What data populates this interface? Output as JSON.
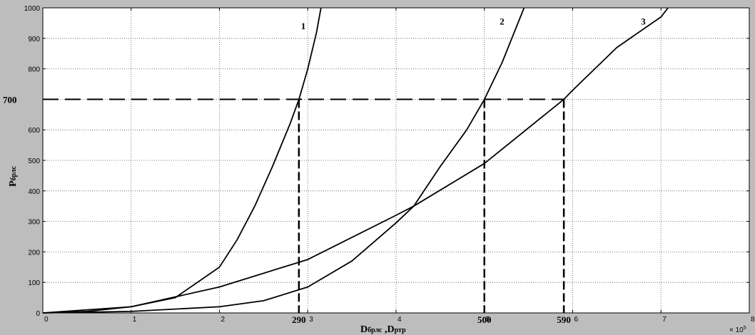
{
  "chart_data": {
    "type": "line",
    "xlabel_main": "D",
    "xlabel_sub1": "брлс",
    "xlabel_sep": " ,D",
    "xlabel_sub2": "ртр",
    "ylabel_main": "P",
    "ylabel_sub": "брлс",
    "x_multiplier": "× 10",
    "x_multiplier_exp": "5",
    "xlim": [
      0,
      8
    ],
    "ylim": [
      0,
      1000
    ],
    "grid": true,
    "x_ticks": [
      "0",
      "1",
      "2",
      "3",
      "4",
      "5",
      "6",
      "7",
      "8"
    ],
    "y_ticks": [
      "0",
      "100",
      "200",
      "300",
      "400",
      "500",
      "600",
      "700",
      "800",
      "900",
      "1000"
    ],
    "series": [
      {
        "name": "1",
        "x": [
          0,
          0.5,
          1.0,
          1.5,
          2.0,
          2.2,
          2.4,
          2.6,
          2.8,
          2.9,
          3.0,
          3.1,
          3.15
        ],
        "y": [
          0,
          5,
          20,
          50,
          150,
          240,
          350,
          480,
          620,
          700,
          800,
          920,
          1000
        ]
      },
      {
        "name": "2",
        "x": [
          0,
          1,
          2,
          2.5,
          3.0,
          3.5,
          4.0,
          4.2,
          4.5,
          4.8,
          5.0,
          5.2,
          5.45
        ],
        "y": [
          0,
          5,
          20,
          40,
          85,
          170,
          295,
          350,
          480,
          600,
          700,
          820,
          1000
        ]
      },
      {
        "name": "3",
        "x": [
          0,
          1,
          2,
          3,
          4,
          4.2,
          5,
          5.9,
          6,
          6.5,
          7,
          7.08
        ],
        "y": [
          0,
          20,
          85,
          175,
          320,
          350,
          490,
          700,
          730,
          870,
          970,
          1000
        ]
      }
    ],
    "reference_lines": [
      {
        "y": 700,
        "x": 2.9,
        "label": "290"
      },
      {
        "y": 700,
        "x": 5.0,
        "label": "500"
      },
      {
        "y": 700,
        "x": 5.9,
        "label": "590"
      }
    ],
    "reference_y_label": "700",
    "curve_labels": [
      {
        "text": "1",
        "x": 2.95,
        "y": 930
      },
      {
        "text": "2",
        "x": 5.2,
        "y": 945
      },
      {
        "text": "3",
        "x": 6.8,
        "y": 945
      }
    ]
  }
}
